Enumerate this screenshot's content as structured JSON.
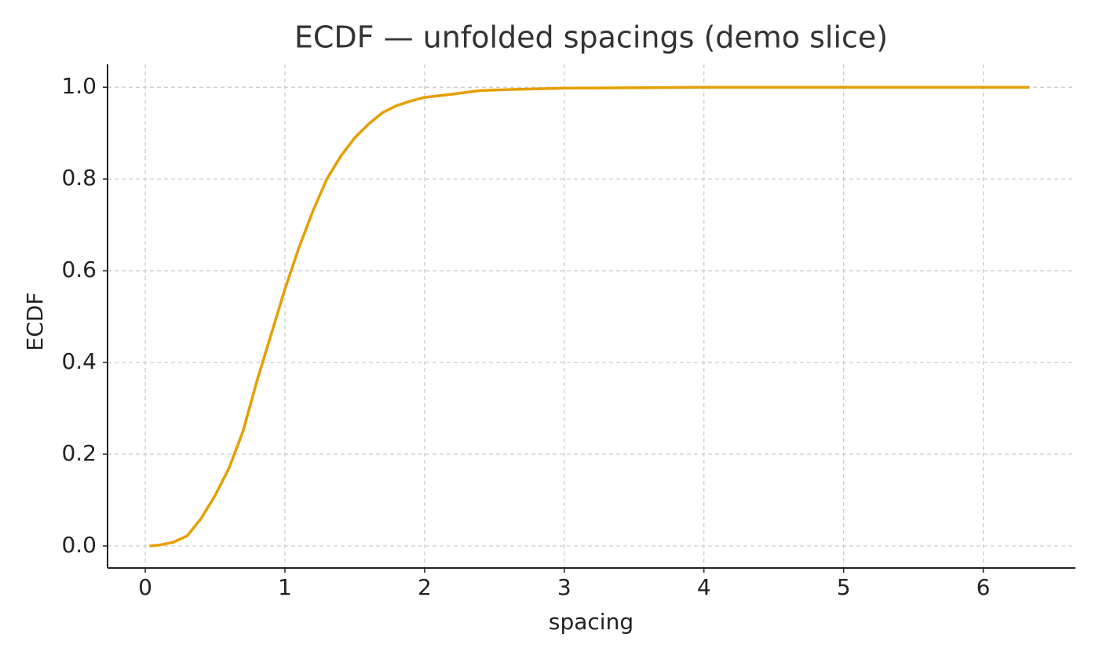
{
  "chart_data": {
    "type": "line",
    "title": "ECDF — unfolded spacings (demo slice)",
    "x_label": "spacing",
    "y_label": "ECDF",
    "x": [
      0.03,
      0.1,
      0.2,
      0.3,
      0.4,
      0.5,
      0.6,
      0.7,
      0.8,
      0.9,
      1.0,
      1.1,
      1.2,
      1.3,
      1.4,
      1.5,
      1.6,
      1.7,
      1.8,
      1.9,
      2.0,
      2.2,
      2.4,
      2.6,
      3.0,
      3.5,
      4.0,
      5.0,
      6.0,
      6.33
    ],
    "series": [
      {
        "color": "#e69f00",
        "values": [
          0.0,
          0.002,
          0.008,
          0.022,
          0.06,
          0.11,
          0.17,
          0.25,
          0.36,
          0.46,
          0.56,
          0.65,
          0.73,
          0.8,
          0.85,
          0.89,
          0.92,
          0.945,
          0.96,
          0.97,
          0.978,
          0.985,
          0.993,
          0.995,
          0.998,
          0.999,
          1.0,
          1.0,
          1.0,
          1.0
        ]
      }
    ],
    "xlim": [
      -0.27,
      6.66
    ],
    "ylim": [
      -0.048,
      1.05
    ],
    "xticks": [
      0,
      1,
      2,
      3,
      4,
      5,
      6
    ],
    "yticks": [
      {
        "value": 0,
        "label": "0.0"
      },
      {
        "value": 0.2,
        "label": "0.2"
      },
      {
        "value": 0.4,
        "label": "0.4"
      },
      {
        "value": 0.6,
        "label": "0.6"
      },
      {
        "value": 0.8,
        "label": "0.8"
      },
      {
        "value": 1.0,
        "label": "1.0"
      }
    ],
    "grid": true
  }
}
